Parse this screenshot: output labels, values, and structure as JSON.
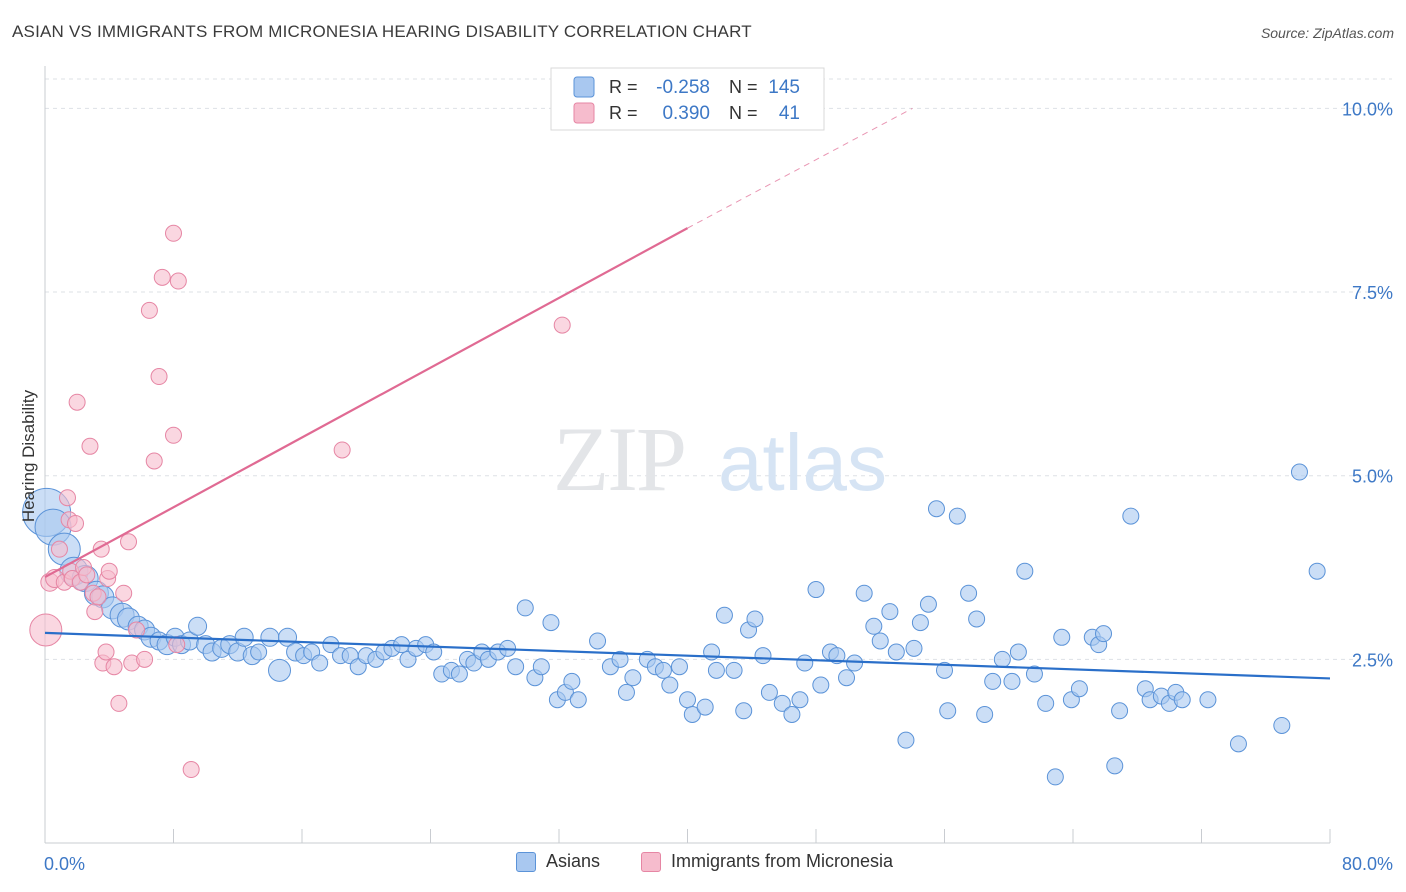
{
  "title": "ASIAN VS IMMIGRANTS FROM MICRONESIA HEARING DISABILITY CORRELATION CHART",
  "source": "Source: ZipAtlas.com",
  "watermark": {
    "zip": "ZIP",
    "atlas": "atlas"
  },
  "colors": {
    "asian_fill": "#a9c8f0",
    "asian_stroke": "#5b93d8",
    "asian_line": "#2a6fc9",
    "micro_fill": "#f6bccd",
    "micro_stroke": "#e686a4",
    "micro_line": "#e06a93",
    "axis_label": "#3d78c6",
    "grid": "#dde1e6"
  },
  "legend_top": {
    "rows": [
      {
        "r_label": "R =",
        "r_value": "-0.258",
        "n_label": "N =",
        "n_value": "145"
      },
      {
        "r_label": "R =",
        "r_value": "0.390",
        "n_label": "N =",
        "n_value": "41"
      }
    ]
  },
  "legend_bottom": {
    "asian": "Asians",
    "micro": "Immigrants from Micronesia"
  },
  "chart_data": {
    "type": "scatter",
    "title": "ASIAN VS IMMIGRANTS FROM MICRONESIA HEARING DISABILITY CORRELATION CHART",
    "xlabel": "",
    "ylabel": "Hearing Disability",
    "xlim": [
      0,
      80
    ],
    "ylim": [
      0,
      10.4
    ],
    "x_tick_labels": [
      "0.0%",
      "80.0%"
    ],
    "y_tick_labels": [
      "2.5%",
      "5.0%",
      "7.5%",
      "10.0%"
    ],
    "y_ticks": [
      2.5,
      5.0,
      7.5,
      10.0
    ],
    "grid": true,
    "legend_position": "top-center",
    "series": [
      {
        "name": "Asians",
        "r": -0.258,
        "n": 145,
        "trend": {
          "x": [
            0,
            80
          ],
          "y": [
            2.86,
            2.24
          ]
        },
        "points": [
          [
            0.1,
            4.5,
            24
          ],
          [
            0.5,
            4.3,
            18
          ],
          [
            1.2,
            4.0,
            16
          ],
          [
            1.8,
            3.7,
            14
          ],
          [
            2.5,
            3.6,
            13
          ],
          [
            3.2,
            3.4,
            12
          ],
          [
            3.6,
            3.35,
            11
          ],
          [
            4.2,
            3.2,
            11
          ],
          [
            4.8,
            3.1,
            12
          ],
          [
            5.2,
            3.05,
            11
          ],
          [
            5.8,
            2.95,
            10
          ],
          [
            6.2,
            2.9,
            10
          ],
          [
            6.6,
            2.8,
            10
          ],
          [
            7.1,
            2.75,
            9
          ],
          [
            7.6,
            2.7,
            10
          ],
          [
            8.1,
            2.8,
            9
          ],
          [
            8.5,
            2.7,
            9
          ],
          [
            9.0,
            2.75,
            9
          ],
          [
            9.5,
            2.95,
            9
          ],
          [
            10.0,
            2.7,
            9
          ],
          [
            10.4,
            2.6,
            9
          ],
          [
            11.0,
            2.65,
            9
          ],
          [
            11.5,
            2.7,
            9
          ],
          [
            12.0,
            2.6,
            9
          ],
          [
            12.4,
            2.8,
            9
          ],
          [
            12.9,
            2.55,
            9
          ],
          [
            13.3,
            2.6,
            8
          ],
          [
            14.0,
            2.8,
            9
          ],
          [
            14.6,
            2.35,
            11
          ],
          [
            15.1,
            2.8,
            9
          ],
          [
            15.6,
            2.6,
            9
          ],
          [
            16.1,
            2.55,
            8
          ],
          [
            16.6,
            2.6,
            8
          ],
          [
            17.1,
            2.45,
            8
          ],
          [
            17.8,
            2.7,
            8
          ],
          [
            18.4,
            2.55,
            8
          ],
          [
            19.0,
            2.55,
            8
          ],
          [
            19.5,
            2.4,
            8
          ],
          [
            20.0,
            2.55,
            8
          ],
          [
            20.6,
            2.5,
            8
          ],
          [
            21.1,
            2.6,
            8
          ],
          [
            21.6,
            2.65,
            8
          ],
          [
            22.2,
            2.7,
            8
          ],
          [
            22.6,
            2.5,
            8
          ],
          [
            23.1,
            2.65,
            8
          ],
          [
            23.7,
            2.7,
            8
          ],
          [
            24.2,
            2.6,
            8
          ],
          [
            24.7,
            2.3,
            8
          ],
          [
            25.3,
            2.35,
            8
          ],
          [
            25.8,
            2.3,
            8
          ],
          [
            26.3,
            2.5,
            8
          ],
          [
            26.7,
            2.45,
            8
          ],
          [
            27.2,
            2.6,
            8
          ],
          [
            27.6,
            2.5,
            8
          ],
          [
            28.2,
            2.6,
            8
          ],
          [
            28.8,
            2.65,
            8
          ],
          [
            29.3,
            2.4,
            8
          ],
          [
            29.9,
            3.2,
            8
          ],
          [
            30.5,
            2.25,
            8
          ],
          [
            30.9,
            2.4,
            8
          ],
          [
            31.5,
            3.0,
            8
          ],
          [
            31.9,
            1.95,
            8
          ],
          [
            32.4,
            2.05,
            8
          ],
          [
            32.8,
            2.2,
            8
          ],
          [
            33.2,
            1.95,
            8
          ],
          [
            34.4,
            2.75,
            8
          ],
          [
            35.2,
            2.4,
            8
          ],
          [
            35.8,
            2.5,
            8
          ],
          [
            36.2,
            2.05,
            8
          ],
          [
            36.6,
            2.25,
            8
          ],
          [
            37.5,
            2.5,
            8
          ],
          [
            38.0,
            2.4,
            8
          ],
          [
            38.5,
            2.35,
            8
          ],
          [
            38.9,
            2.15,
            8
          ],
          [
            39.5,
            2.4,
            8
          ],
          [
            40.0,
            1.95,
            8
          ],
          [
            40.3,
            1.75,
            8
          ],
          [
            41.1,
            1.85,
            8
          ],
          [
            41.5,
            2.6,
            8
          ],
          [
            41.8,
            2.35,
            8
          ],
          [
            42.3,
            3.1,
            8
          ],
          [
            42.9,
            2.35,
            8
          ],
          [
            43.5,
            1.8,
            8
          ],
          [
            43.8,
            2.9,
            8
          ],
          [
            44.2,
            3.05,
            8
          ],
          [
            44.7,
            2.55,
            8
          ],
          [
            45.1,
            2.05,
            8
          ],
          [
            45.9,
            1.9,
            8
          ],
          [
            46.5,
            1.75,
            8
          ],
          [
            47.0,
            1.95,
            8
          ],
          [
            47.3,
            2.45,
            8
          ],
          [
            48.0,
            3.45,
            8
          ],
          [
            48.3,
            2.15,
            8
          ],
          [
            48.9,
            2.6,
            8
          ],
          [
            49.3,
            2.55,
            8
          ],
          [
            49.9,
            2.25,
            8
          ],
          [
            50.4,
            2.45,
            8
          ],
          [
            51.0,
            3.4,
            8
          ],
          [
            51.6,
            2.95,
            8
          ],
          [
            52.0,
            2.75,
            8
          ],
          [
            52.6,
            3.15,
            8
          ],
          [
            53.0,
            2.6,
            8
          ],
          [
            53.6,
            1.4,
            8
          ],
          [
            54.1,
            2.65,
            8
          ],
          [
            54.5,
            3.0,
            8
          ],
          [
            55.0,
            3.25,
            8
          ],
          [
            55.5,
            4.55,
            8
          ],
          [
            56.0,
            2.35,
            8
          ],
          [
            56.2,
            1.8,
            8
          ],
          [
            56.8,
            4.45,
            8
          ],
          [
            57.5,
            3.4,
            8
          ],
          [
            58.0,
            3.05,
            8
          ],
          [
            58.5,
            1.75,
            8
          ],
          [
            59.0,
            2.2,
            8
          ],
          [
            59.6,
            2.5,
            8
          ],
          [
            60.2,
            2.2,
            8
          ],
          [
            60.6,
            2.6,
            8
          ],
          [
            61.0,
            3.7,
            8
          ],
          [
            61.6,
            2.3,
            8
          ],
          [
            62.3,
            1.9,
            8
          ],
          [
            62.9,
            0.9,
            8
          ],
          [
            63.3,
            2.8,
            8
          ],
          [
            63.9,
            1.95,
            8
          ],
          [
            64.4,
            2.1,
            8
          ],
          [
            65.2,
            2.8,
            8
          ],
          [
            65.6,
            2.7,
            8
          ],
          [
            65.9,
            2.85,
            8
          ],
          [
            66.6,
            1.05,
            8
          ],
          [
            66.9,
            1.8,
            8
          ],
          [
            67.6,
            4.45,
            8
          ],
          [
            68.5,
            2.1,
            8
          ],
          [
            68.8,
            1.95,
            8
          ],
          [
            69.5,
            2.0,
            8
          ],
          [
            70.0,
            1.9,
            8
          ],
          [
            70.4,
            2.05,
            8
          ],
          [
            70.8,
            1.95,
            8
          ],
          [
            72.4,
            1.95,
            8
          ],
          [
            74.3,
            1.35,
            8
          ],
          [
            77.0,
            1.6,
            8
          ],
          [
            78.1,
            5.05,
            8
          ],
          [
            79.2,
            3.7,
            8
          ]
        ]
      },
      {
        "name": "Immigrants from Micronesia",
        "r": 0.39,
        "n": 41,
        "trend": {
          "x": [
            0,
            40
          ],
          "y": [
            3.62,
            8.37
          ]
        },
        "trend_extension": {
          "x": [
            40,
            54
          ],
          "y": [
            8.37,
            10.0
          ]
        },
        "points": [
          [
            0.05,
            2.9,
            16
          ],
          [
            0.3,
            3.55,
            9
          ],
          [
            0.6,
            3.6,
            9
          ],
          [
            0.9,
            4.0,
            8
          ],
          [
            1.2,
            3.55,
            8
          ],
          [
            1.4,
            4.7,
            8
          ],
          [
            1.5,
            4.4,
            8
          ],
          [
            1.6,
            3.7,
            8
          ],
          [
            1.7,
            3.6,
            8
          ],
          [
            1.9,
            4.35,
            8
          ],
          [
            2.0,
            6.0,
            8
          ],
          [
            2.2,
            3.55,
            8
          ],
          [
            2.4,
            3.75,
            8
          ],
          [
            2.6,
            3.65,
            8
          ],
          [
            2.8,
            5.4,
            8
          ],
          [
            3.0,
            3.4,
            8
          ],
          [
            3.1,
            3.15,
            8
          ],
          [
            3.3,
            3.35,
            8
          ],
          [
            3.5,
            4.0,
            8
          ],
          [
            3.6,
            2.45,
            8
          ],
          [
            3.8,
            2.6,
            8
          ],
          [
            3.9,
            3.6,
            8
          ],
          [
            4.0,
            3.7,
            8
          ],
          [
            4.3,
            2.4,
            8
          ],
          [
            4.6,
            1.9,
            8
          ],
          [
            4.9,
            3.4,
            8
          ],
          [
            5.2,
            4.1,
            8
          ],
          [
            5.4,
            2.45,
            8
          ],
          [
            5.7,
            2.9,
            8
          ],
          [
            6.2,
            2.5,
            8
          ],
          [
            6.5,
            7.25,
            8
          ],
          [
            6.8,
            5.2,
            8
          ],
          [
            7.1,
            6.35,
            8
          ],
          [
            7.3,
            7.7,
            8
          ],
          [
            8.0,
            5.55,
            8
          ],
          [
            8.0,
            8.3,
            8
          ],
          [
            8.3,
            7.65,
            8
          ],
          [
            9.1,
            1.0,
            8
          ],
          [
            18.5,
            5.35,
            8
          ],
          [
            32.2,
            7.05,
            8
          ],
          [
            8.2,
            2.7,
            8
          ]
        ]
      }
    ]
  }
}
